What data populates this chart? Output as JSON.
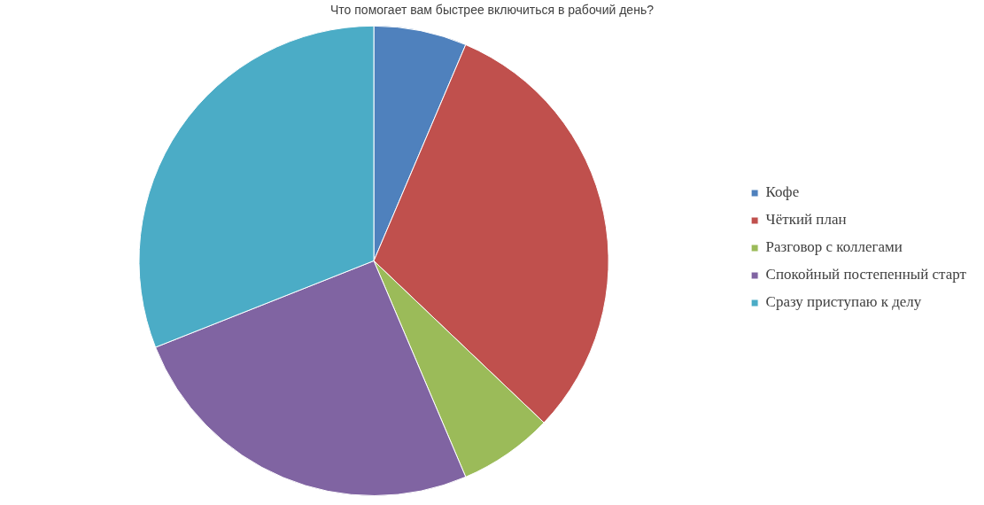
{
  "chart_data": {
    "type": "pie",
    "title": "Что помогает вам быстрее включиться в рабочий день?",
    "categories": [
      "Кофе",
      "Чёткий план",
      "Разговор с коллегами",
      "Спокойный постепенный старт",
      "Сразу приступаю к делу"
    ],
    "values": [
      6.4,
      30.7,
      6.5,
      25.4,
      31.0
    ],
    "colors": [
      "#4f81bd",
      "#c0504d",
      "#9bbb59",
      "#8064a2",
      "#4bacc6"
    ],
    "legend": "right"
  }
}
